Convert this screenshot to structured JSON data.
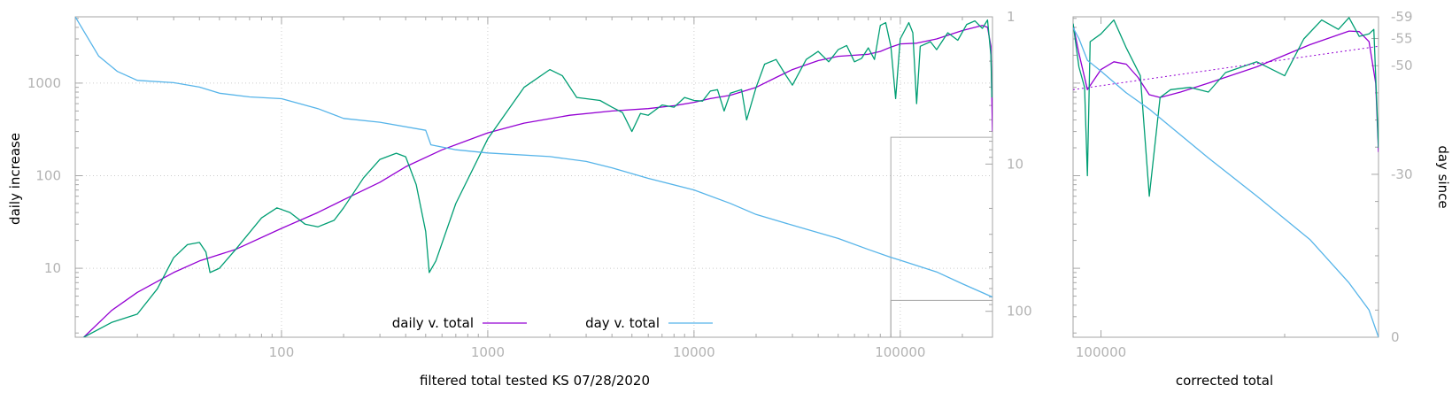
{
  "chart_data": [
    {
      "type": "line",
      "xlabel": "filtered total tested KS 07/28/2020",
      "ylabel": "daily increase",
      "x_scale": "log",
      "y_scale": "log",
      "y2_scale": "log",
      "xlim": [
        10,
        280000
      ],
      "ylim": [
        1.8,
        5200
      ],
      "y2lim": [
        1,
        150
      ],
      "x_ticks": [
        100,
        1000,
        10000,
        100000
      ],
      "x_tick_labels": [
        "100",
        "1000",
        "10000",
        "100000"
      ],
      "y_ticks": [
        10,
        100,
        1000
      ],
      "y_tick_labels": [
        "10",
        "100",
        "1000"
      ],
      "y2_ticks": [
        1,
        10,
        100
      ],
      "y2_tick_labels": [
        "1",
        "10",
        "100"
      ],
      "grid": true,
      "legend_position": "bottom-center",
      "zoom_box": {
        "x": [
          90000,
          280000
        ],
        "y": [
          4.5,
          260
        ]
      },
      "series": [
        {
          "name": "daily v. total",
          "axis": "y",
          "color": "#9400d3",
          "points": [
            [
              11,
              1.8
            ],
            [
              15,
              3.5
            ],
            [
              20,
              5.5
            ],
            [
              30,
              9
            ],
            [
              40,
              12
            ],
            [
              60,
              16
            ],
            [
              100,
              27
            ],
            [
              150,
              40
            ],
            [
              200,
              55
            ],
            [
              300,
              85
            ],
            [
              400,
              125
            ],
            [
              600,
              190
            ],
            [
              1000,
              290
            ],
            [
              1500,
              370
            ],
            [
              2500,
              450
            ],
            [
              4000,
              500
            ],
            [
              6000,
              530
            ],
            [
              8000,
              570
            ],
            [
              10000,
              620
            ],
            [
              12000,
              680
            ],
            [
              15000,
              740
            ],
            [
              20000,
              900
            ],
            [
              25000,
              1150
            ],
            [
              30000,
              1400
            ],
            [
              40000,
              1750
            ],
            [
              50000,
              1950
            ],
            [
              60000,
              2000
            ],
            [
              70000,
              2050
            ],
            [
              80000,
              2200
            ],
            [
              90000,
              2450
            ],
            [
              100000,
              2650
            ],
            [
              120000,
              2700
            ],
            [
              150000,
              3000
            ],
            [
              200000,
              3700
            ],
            [
              250000,
              4200
            ],
            [
              265000,
              4000
            ],
            [
              275000,
              2500
            ],
            [
              278000,
              700
            ],
            [
              280000,
              300
            ]
          ]
        },
        {
          "name": "",
          "axis": "y",
          "color": "#009e73",
          "points": [
            [
              11,
              1.8
            ],
            [
              15,
              2.6
            ],
            [
              20,
              3.2
            ],
            [
              25,
              6
            ],
            [
              30,
              13
            ],
            [
              35,
              18
            ],
            [
              40,
              19
            ],
            [
              43,
              15
            ],
            [
              45,
              9
            ],
            [
              50,
              10
            ],
            [
              60,
              16
            ],
            [
              80,
              35
            ],
            [
              95,
              45
            ],
            [
              110,
              40
            ],
            [
              130,
              30
            ],
            [
              150,
              28
            ],
            [
              180,
              33
            ],
            [
              200,
              45
            ],
            [
              250,
              95
            ],
            [
              300,
              150
            ],
            [
              360,
              175
            ],
            [
              400,
              160
            ],
            [
              450,
              80
            ],
            [
              500,
              25
            ],
            [
              520,
              9
            ],
            [
              560,
              12
            ],
            [
              700,
              50
            ],
            [
              1000,
              250
            ],
            [
              1500,
              900
            ],
            [
              2000,
              1400
            ],
            [
              2300,
              1200
            ],
            [
              2700,
              700
            ],
            [
              3500,
              650
            ],
            [
              4000,
              550
            ],
            [
              4500,
              480
            ],
            [
              5000,
              300
            ],
            [
              5500,
              470
            ],
            [
              6000,
              450
            ],
            [
              7000,
              580
            ],
            [
              8000,
              550
            ],
            [
              9000,
              700
            ],
            [
              10000,
              650
            ],
            [
              11000,
              640
            ],
            [
              12000,
              820
            ],
            [
              13000,
              850
            ],
            [
              14000,
              500
            ],
            [
              15000,
              780
            ],
            [
              17000,
              850
            ],
            [
              18000,
              400
            ],
            [
              20000,
              900
            ],
            [
              22000,
              1600
            ],
            [
              25000,
              1800
            ],
            [
              28000,
              1200
            ],
            [
              30000,
              950
            ],
            [
              35000,
              1800
            ],
            [
              40000,
              2200
            ],
            [
              45000,
              1700
            ],
            [
              50000,
              2300
            ],
            [
              55000,
              2550
            ],
            [
              60000,
              1700
            ],
            [
              65000,
              1850
            ],
            [
              70000,
              2400
            ],
            [
              75000,
              1800
            ],
            [
              80000,
              4200
            ],
            [
              85000,
              4500
            ],
            [
              90000,
              2500
            ],
            [
              95000,
              680
            ],
            [
              100000,
              3000
            ],
            [
              110000,
              4500
            ],
            [
              115000,
              3500
            ],
            [
              120000,
              600
            ],
            [
              125000,
              2500
            ],
            [
              140000,
              2800
            ],
            [
              150000,
              2300
            ],
            [
              170000,
              3500
            ],
            [
              190000,
              2900
            ],
            [
              210000,
              4300
            ],
            [
              230000,
              4700
            ],
            [
              250000,
              3900
            ],
            [
              265000,
              4800
            ],
            [
              275000,
              2000
            ],
            [
              278000,
              700
            ]
          ]
        },
        {
          "name": "day v. total",
          "axis": "y2",
          "color": "#56b4e9",
          "points": [
            [
              10,
              1
            ],
            [
              13,
              1.85
            ],
            [
              16,
              2.35
            ],
            [
              20,
              2.7
            ],
            [
              30,
              2.8
            ],
            [
              40,
              3.0
            ],
            [
              50,
              3.3
            ],
            [
              70,
              3.5
            ],
            [
              100,
              3.6
            ],
            [
              150,
              4.2
            ],
            [
              200,
              4.9
            ],
            [
              300,
              5.2
            ],
            [
              500,
              5.9
            ],
            [
              530,
              7.4
            ],
            [
              700,
              8.0
            ],
            [
              1000,
              8.4
            ],
            [
              2000,
              8.9
            ],
            [
              3000,
              9.6
            ],
            [
              4000,
              10.6
            ],
            [
              6000,
              12.5
            ],
            [
              10000,
              15.0
            ],
            [
              15000,
              18.5
            ],
            [
              20000,
              22
            ],
            [
              30000,
              26
            ],
            [
              50000,
              32
            ],
            [
              70000,
              38
            ],
            [
              90000,
              43
            ],
            [
              100000,
              45
            ],
            [
              150000,
              54
            ],
            [
              200000,
              65
            ],
            [
              280000,
              80
            ]
          ]
        }
      ]
    },
    {
      "type": "line",
      "xlabel": "corrected total",
      "ylabel": "day since",
      "x_scale": "log",
      "xlim": [
        90000,
        285000
      ],
      "x_ticks": [
        100000
      ],
      "x_tick_labels": [
        "100000"
      ],
      "y_scale": "log",
      "y2lim": [
        0,
        -59
      ],
      "y2_ticks": [
        -59,
        -55,
        -50,
        -30,
        0
      ],
      "y2_tick_labels": [
        "-59",
        "-55",
        "-50",
        "-30",
        "0"
      ],
      "series": [
        {
          "name": "",
          "axis": "y",
          "color": "#9400d3",
          "points": [
            [
              90000,
              4300
            ],
            [
              92000,
              2100
            ],
            [
              95000,
              850
            ],
            [
              100000,
              1400
            ],
            [
              105000,
              1700
            ],
            [
              110000,
              1600
            ],
            [
              115000,
              1150
            ],
            [
              120000,
              750
            ],
            [
              125000,
              700
            ],
            [
              135000,
              800
            ],
            [
              150000,
              1000
            ],
            [
              180000,
              1500
            ],
            [
              220000,
              2600
            ],
            [
              255000,
              3650
            ],
            [
              265000,
              3600
            ],
            [
              275000,
              2800
            ],
            [
              282000,
              1000
            ],
            [
              285000,
              180
            ]
          ]
        },
        {
          "name": "",
          "axis": "y",
          "color": "#009e73",
          "points": [
            [
              90000,
              4400
            ],
            [
              92000,
              1500
            ],
            [
              94000,
              900
            ],
            [
              95000,
              100
            ],
            [
              96000,
              2800
            ],
            [
              100000,
              3400
            ],
            [
              105000,
              4800
            ],
            [
              110000,
              2400
            ],
            [
              116000,
              1200
            ],
            [
              120000,
              60
            ],
            [
              125000,
              700
            ],
            [
              130000,
              850
            ],
            [
              140000,
              900
            ],
            [
              150000,
              800
            ],
            [
              160000,
              1300
            ],
            [
              180000,
              1700
            ],
            [
              200000,
              1200
            ],
            [
              215000,
              3000
            ],
            [
              230000,
              4800
            ],
            [
              245000,
              3800
            ],
            [
              255000,
              5100
            ],
            [
              265000,
              3200
            ],
            [
              275000,
              3400
            ],
            [
              280000,
              3800
            ],
            [
              285000,
              200
            ]
          ]
        },
        {
          "name": "",
          "axis": "y",
          "color": "#9400d3",
          "dashed": true,
          "points": [
            [
              90000,
              850
            ],
            [
              285000,
              2500
            ]
          ]
        },
        {
          "name": "",
          "axis": "y2",
          "color": "#56b4e9",
          "points": [
            [
              90000,
              -57
            ],
            [
              92000,
              -55
            ],
            [
              95000,
              -51
            ],
            [
              100000,
              -49
            ],
            [
              110000,
              -45
            ],
            [
              120000,
              -42
            ],
            [
              150000,
              -33
            ],
            [
              180000,
              -26
            ],
            [
              220000,
              -18
            ],
            [
              255000,
              -10
            ],
            [
              275000,
              -5
            ],
            [
              285000,
              0
            ]
          ]
        }
      ]
    }
  ]
}
